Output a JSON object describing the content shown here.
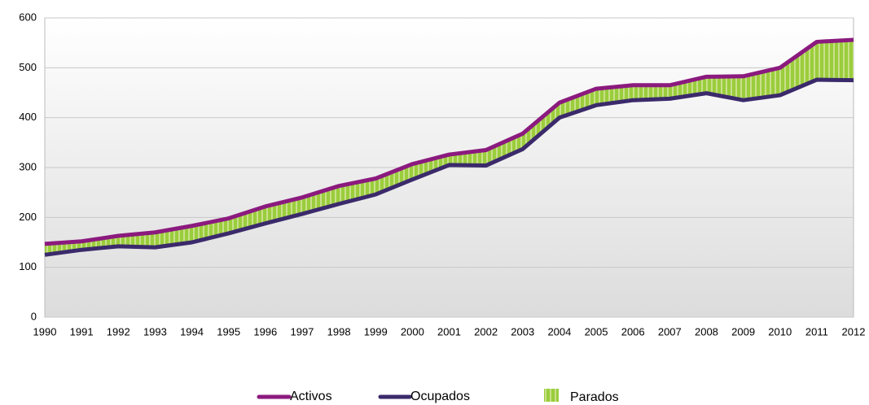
{
  "chart_data": {
    "type": "line",
    "categories": [
      "1990",
      "1991",
      "1992",
      "1993",
      "1994",
      "1995",
      "1996",
      "1997",
      "1998",
      "1999",
      "2000",
      "2001",
      "2002",
      "2003",
      "2004",
      "2005",
      "2006",
      "2007",
      "2008",
      "2009",
      "2010",
      "2011",
      "2012"
    ],
    "series": [
      {
        "name": "Activos",
        "color": "#8b1a7e",
        "values": [
          147,
          152,
          163,
          170,
          183,
          198,
          222,
          240,
          263,
          278,
          307,
          326,
          335,
          368,
          430,
          458,
          465,
          465,
          482,
          483,
          500,
          552,
          556
        ]
      },
      {
        "name": "Ocupados",
        "color": "#3b2a6b",
        "values": [
          125,
          135,
          142,
          140,
          150,
          168,
          188,
          207,
          227,
          246,
          276,
          305,
          304,
          337,
          400,
          425,
          435,
          438,
          449,
          435,
          445,
          476,
          475
        ]
      },
      {
        "name": "Parados",
        "color": "#9acd3c",
        "values": [
          22,
          17,
          21,
          30,
          33,
          30,
          34,
          33,
          36,
          32,
          31,
          21,
          31,
          31,
          30,
          33,
          30,
          27,
          33,
          48,
          55,
          76,
          81
        ]
      }
    ],
    "ylim": [
      0,
      600
    ],
    "yticks": [
      0,
      100,
      200,
      300,
      400,
      500,
      600
    ],
    "grid": true
  }
}
